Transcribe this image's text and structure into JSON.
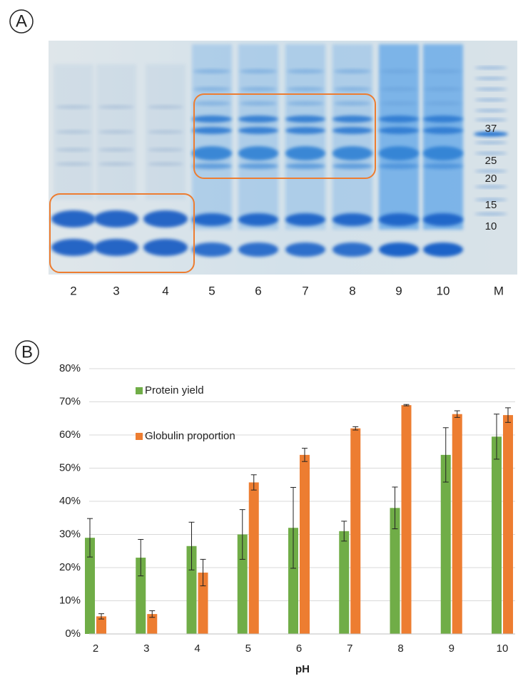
{
  "panels": {
    "a": "A",
    "b": "B"
  },
  "gel": {
    "lanes": [
      "2",
      "3",
      "4",
      "5",
      "6",
      "7",
      "8",
      "9",
      "10",
      "M"
    ],
    "markers": [
      "37",
      "25",
      "20",
      "15",
      "10"
    ]
  },
  "chart_data": {
    "type": "bar",
    "xlabel": "pH",
    "categories": [
      "2",
      "3",
      "4",
      "5",
      "6",
      "7",
      "8",
      "9",
      "10"
    ],
    "series": [
      {
        "name": "Protein yield",
        "color": "#70ad47",
        "values": [
          29,
          23,
          26.5,
          30,
          32,
          31,
          38,
          54,
          59.5
        ],
        "errors": [
          5.8,
          5.5,
          7.2,
          7.5,
          12.2,
          3,
          6.3,
          8.2,
          6.8
        ]
      },
      {
        "name": "Globulin proportion",
        "color": "#ed7d31",
        "values": [
          5.3,
          6,
          18.5,
          45.7,
          54,
          62,
          69,
          66.3,
          66
        ],
        "errors": [
          0.8,
          1,
          4,
          2.3,
          2,
          0.5,
          0.2,
          1,
          2.2
        ]
      }
    ],
    "ylim": [
      0,
      80
    ],
    "yticks": [
      {
        "value": 0,
        "label": "0%"
      },
      {
        "value": 10,
        "label": "10%"
      },
      {
        "value": 20,
        "label": "20%"
      },
      {
        "value": 30,
        "label": "30%"
      },
      {
        "value": 40,
        "label": "40%"
      },
      {
        "value": 50,
        "label": "50%"
      },
      {
        "value": 60,
        "label": "60%"
      },
      {
        "value": 70,
        "label": "70%"
      },
      {
        "value": 80,
        "label": "80%"
      }
    ],
    "grid": true
  }
}
